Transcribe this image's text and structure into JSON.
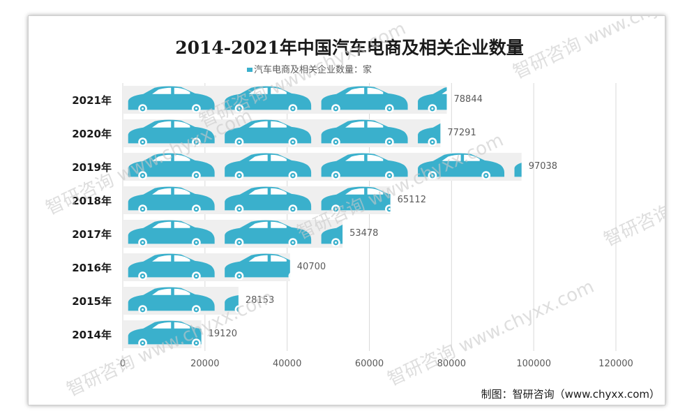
{
  "chart_data": {
    "type": "bar",
    "orientation": "horizontal",
    "title": "2014-2021年中国汽车电商及相关企业数量",
    "legend": "汽车电商及相关企业数量：家",
    "categories": [
      "2021年",
      "2020年",
      "2019年",
      "2018年",
      "2017年",
      "2016年",
      "2015年",
      "2014年"
    ],
    "values": [
      78844,
      77291,
      97038,
      65112,
      53478,
      40700,
      28153,
      19120
    ],
    "value_labels": [
      "78844",
      "77291",
      "97038",
      "65112",
      "53478",
      "40700",
      "28153",
      "19120"
    ],
    "x_ticks": [
      "0",
      "20000",
      "40000",
      "60000",
      "80000",
      "100000",
      "120000"
    ],
    "xlim": [
      0,
      120000
    ],
    "pictograph_unit": 23500,
    "grid": true,
    "legend_position": "top"
  },
  "watermark": "智研咨询 www.chyxx.com",
  "source": "制图：智研咨询（www.chyxx.com）",
  "colors": {
    "car": "#3ab0cc",
    "car_window": "#ffffff",
    "bar_bg": "#efefef",
    "grid": "#d9d9d9",
    "title": "#1a1a1a",
    "tick": "#595959",
    "watermark": "#c8c8c8"
  }
}
